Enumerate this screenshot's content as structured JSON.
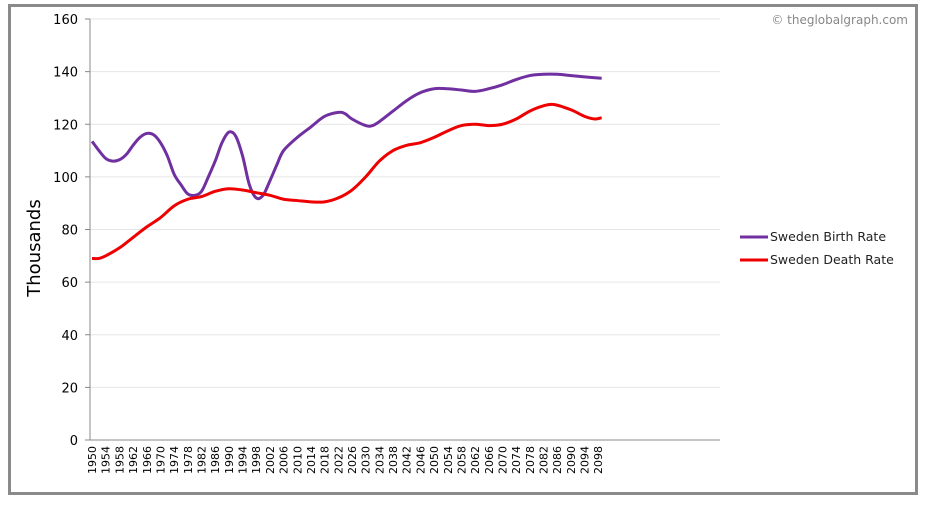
{
  "watermark": "© theglobalgraph.com",
  "chart_data": {
    "type": "line",
    "title": "",
    "xlabel": "",
    "ylabel": "Thousands",
    "ylim": [
      0,
      160
    ],
    "xlim": [
      1949.4,
      2133.6
    ],
    "yticks": [
      0,
      20,
      40,
      60,
      80,
      100,
      120,
      140,
      160
    ],
    "xticks": [
      1950,
      1954,
      1958,
      1962,
      1966,
      1970,
      1974,
      1978,
      1982,
      1986,
      1990,
      1994,
      1998,
      2002,
      2006,
      2010,
      2014,
      2018,
      2022,
      2026,
      2030,
      2034,
      2038,
      2042,
      2046,
      2050,
      2054,
      2058,
      2062,
      2066,
      2070,
      2074,
      2078,
      2082,
      2086,
      2090,
      2094,
      2098
    ],
    "grid": true,
    "legend_position": "right",
    "series": [
      {
        "name": "Sweden Birth Rate",
        "color": "#7030a0",
        "x": [
          1950,
          1952,
          1954,
          1956,
          1958,
          1960,
          1962,
          1964,
          1966,
          1968,
          1970,
          1972,
          1974,
          1976,
          1978,
          1980,
          1982,
          1984,
          1986,
          1988,
          1990,
          1992,
          1994,
          1996,
          1998,
          2000,
          2002,
          2004,
          2006,
          2010,
          2014,
          2018,
          2022,
          2024,
          2026,
          2030,
          2032,
          2034,
          2038,
          2042,
          2046,
          2050,
          2054,
          2058,
          2062,
          2066,
          2070,
          2074,
          2078,
          2082,
          2086,
          2090,
          2094,
          2099
        ],
        "y": [
          113.5,
          110,
          107,
          106,
          106.5,
          108.5,
          112,
          115,
          116.5,
          116,
          113,
          108,
          101,
          97,
          93.5,
          93,
          94.5,
          100,
          106,
          113,
          117,
          115.5,
          108,
          97,
          92,
          93,
          98.5,
          104.5,
          110,
          115,
          119,
          123,
          124.5,
          124,
          122,
          119.5,
          119.5,
          121,
          125,
          129,
          132,
          133.5,
          133.5,
          133,
          132.5,
          133.5,
          135,
          137,
          138.5,
          139,
          139,
          138.5,
          138,
          137.5
        ]
      },
      {
        "name": "Sweden Death Rate",
        "color": "#ee0000",
        "x": [
          1950,
          1952,
          1954,
          1958,
          1962,
          1966,
          1970,
          1974,
          1978,
          1982,
          1986,
          1990,
          1994,
          1998,
          2002,
          2006,
          2010,
          2014,
          2018,
          2022,
          2026,
          2030,
          2034,
          2038,
          2042,
          2046,
          2050,
          2054,
          2058,
          2062,
          2066,
          2070,
          2074,
          2078,
          2082,
          2085,
          2090,
          2094,
          2097,
          2099
        ],
        "y": [
          69,
          69,
          70,
          73,
          77,
          81,
          84.5,
          89,
          91.5,
          92.5,
          94.5,
          95.5,
          95,
          94,
          93,
          91.5,
          91,
          90.5,
          90.5,
          92,
          95,
          100,
          106,
          110,
          112,
          113,
          115,
          117.5,
          119.5,
          120,
          119.5,
          120,
          122,
          125,
          127,
          127.5,
          125.5,
          123,
          122,
          122.5
        ]
      }
    ]
  }
}
